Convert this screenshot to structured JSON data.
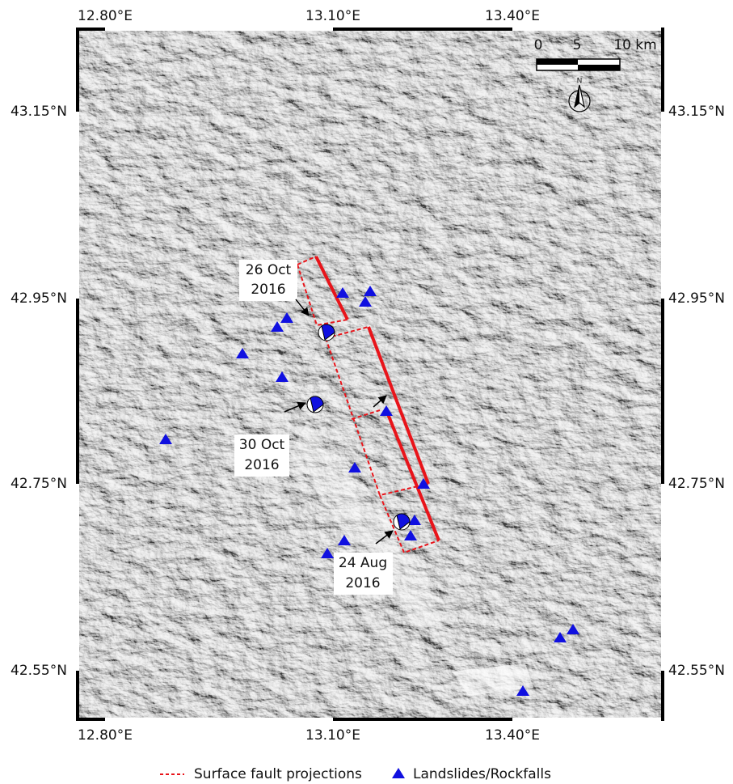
{
  "map": {
    "lon_labels_top": [
      "12.80°E",
      "13.10°E",
      "13.40°E"
    ],
    "lon_labels_bottom": [
      "12.80°E",
      "13.10°E",
      "13.40°E"
    ],
    "lat_labels_left": [
      "43.15°N",
      "42.95°N",
      "42.75°N",
      "42.55°N"
    ],
    "lat_labels_right": [
      "43.15°N",
      "42.95°N",
      "42.75°N",
      "42.55°N"
    ],
    "scale_bar": {
      "labels": [
        "0",
        "5",
        "10 km"
      ]
    },
    "north_label": "N",
    "annotations": [
      {
        "lines": [
          "26 Oct",
          "2016"
        ]
      },
      {
        "lines": [
          "30 Oct",
          "2016"
        ]
      },
      {
        "lines": [
          "24 Aug",
          "2016"
        ]
      }
    ],
    "legend": {
      "items": [
        "Surface fault projections",
        "Landslides/Rockfalls"
      ]
    }
  }
}
